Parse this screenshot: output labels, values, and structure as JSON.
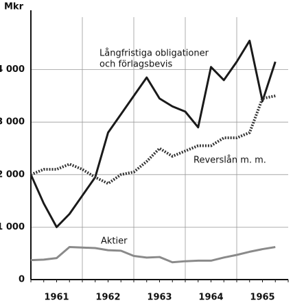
{
  "chart_data": {
    "type": "line",
    "y_unit": "Mkr",
    "x": [
      1961,
      1961.25,
      1961.5,
      1961.75,
      1962,
      1962.25,
      1962.5,
      1962.75,
      1963,
      1963.25,
      1963.5,
      1963.75,
      1964,
      1964.25,
      1964.5,
      1964.75,
      1965,
      1965.25,
      1965.5,
      1965.75
    ],
    "xlim": [
      1961,
      1966
    ],
    "xticks": [
      {
        "value": 1961.5,
        "label": "1961"
      },
      {
        "value": 1962.5,
        "label": "1962"
      },
      {
        "value": 1963.5,
        "label": "1963"
      },
      {
        "value": 1964.5,
        "label": "1964"
      },
      {
        "value": 1965.5,
        "label": "1965"
      }
    ],
    "xgrid": [
      1962,
      1963,
      1964,
      1965
    ],
    "ylim": [
      0,
      5000
    ],
    "yticks": [
      0,
      {
        "value": 1000,
        "label": "1 000"
      },
      {
        "value": 2000,
        "label": "2 000"
      },
      {
        "value": 3000,
        "label": "3 000"
      },
      {
        "value": 4000,
        "label": "4 000"
      }
    ],
    "grid": true,
    "series": [
      {
        "label": [
          "Långfristiga obligationer",
          "och förlagsbevis"
        ],
        "color": "#1a1a1a",
        "style": "solid",
        "values": [
          2000,
          1450,
          1000,
          1250,
          1600,
          1950,
          2800,
          3150,
          3500,
          3850,
          3450,
          3300,
          3200,
          2900,
          4050,
          3800,
          4150,
          4550,
          3400,
          4150
        ]
      },
      {
        "label": [
          "Reverslån m. m."
        ],
        "color": "#333333",
        "style": "dotted",
        "values": [
          2000,
          2100,
          2100,
          2200,
          2100,
          1950,
          1830,
          2000,
          2050,
          2250,
          2500,
          2350,
          2450,
          2550,
          2550,
          2700,
          2700,
          2800,
          3450,
          3500
        ]
      },
      {
        "label": [
          "Aktier"
        ],
        "color": "#8a8a8a",
        "style": "solid",
        "values": [
          370,
          380,
          410,
          620,
          610,
          600,
          560,
          550,
          450,
          420,
          430,
          330,
          350,
          360,
          360,
          420,
          470,
          530,
          580,
          620
        ]
      }
    ]
  }
}
